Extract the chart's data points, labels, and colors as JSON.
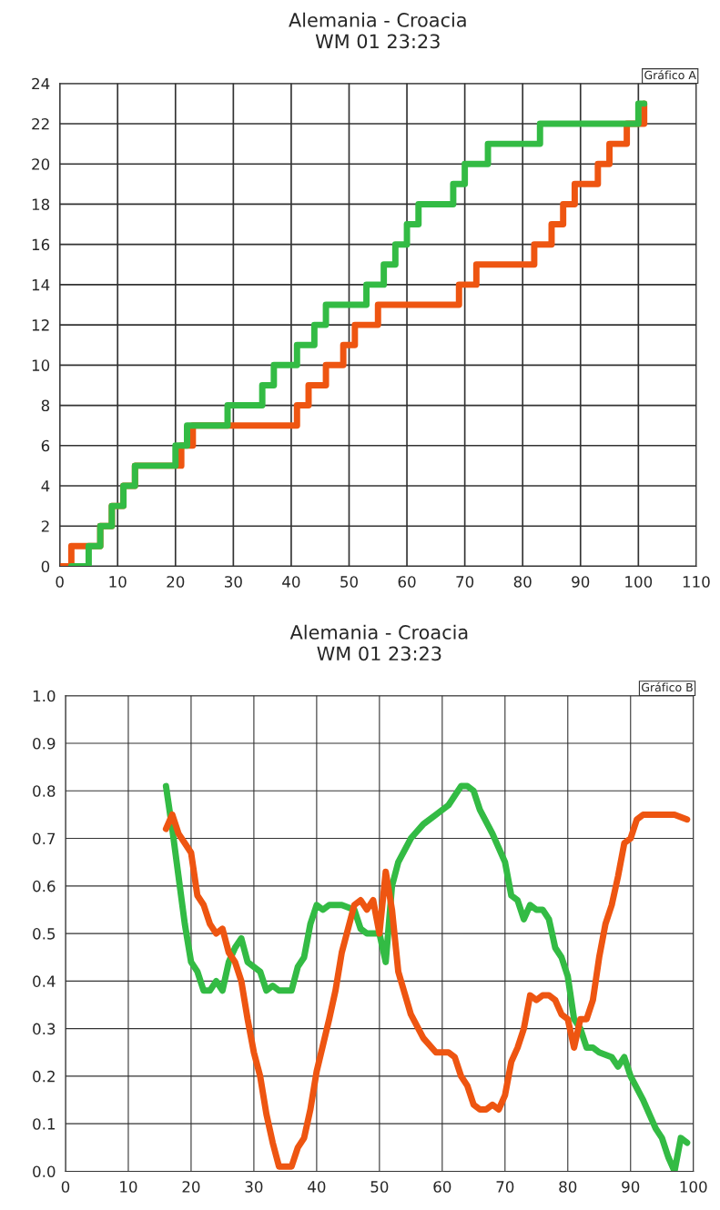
{
  "chart_data": [
    {
      "type": "step",
      "title": "Alemania - Croacia",
      "subtitle": "WM 01 23:23",
      "annotations": [
        "Gráfico A"
      ],
      "xlim": [
        0,
        110
      ],
      "xticks": [
        0,
        10,
        20,
        30,
        40,
        50,
        60,
        70,
        80,
        90,
        100,
        110
      ],
      "ylim": [
        0,
        24
      ],
      "yticks": [
        0,
        2,
        4,
        6,
        8,
        10,
        12,
        14,
        16,
        18,
        20,
        22,
        24
      ],
      "grid": true,
      "marker": "none",
      "line_style": "solid",
      "series": [
        {
          "color": "#ee5511",
          "x": [
            0,
            2,
            7,
            9,
            11,
            13,
            19,
            21,
            23,
            41,
            43,
            46,
            49,
            51,
            55,
            69,
            72,
            82,
            85,
            87,
            89,
            93,
            95,
            98,
            101
          ],
          "values": [
            0,
            1,
            2,
            3,
            4,
            5,
            5,
            6,
            7,
            8,
            9,
            10,
            11,
            12,
            13,
            14,
            15,
            16,
            17,
            18,
            19,
            20,
            21,
            22,
            23
          ]
        },
        {
          "color": "#33bb44",
          "x": [
            2,
            5,
            7,
            9,
            11,
            13,
            20,
            22,
            29,
            35,
            37,
            41,
            44,
            46,
            53,
            56,
            58,
            60,
            62,
            68,
            70,
            74,
            83,
            100,
            101
          ],
          "values": [
            0,
            1,
            2,
            3,
            4,
            5,
            6,
            7,
            8,
            9,
            10,
            11,
            12,
            13,
            14,
            15,
            16,
            17,
            18,
            19,
            20,
            21,
            22,
            23,
            23
          ]
        }
      ]
    },
    {
      "type": "line",
      "title": "Alemania - Croacia",
      "subtitle": "WM 01 23:23",
      "annotations": [
        "Gráfico B"
      ],
      "xlim": [
        0,
        100
      ],
      "xticks": [
        0,
        10,
        20,
        30,
        40,
        50,
        60,
        70,
        80,
        90,
        100
      ],
      "ylim": [
        0,
        1
      ],
      "yticks": [
        {
          "value": 0,
          "label": "0.0"
        },
        0.1,
        0.2,
        0.3,
        0.4,
        0.5,
        0.6,
        0.7,
        0.8,
        0.9,
        {
          "value": 1,
          "label": "1.0"
        }
      ],
      "grid": true,
      "marker": "none",
      "line_style": "solid",
      "series": [
        {
          "color": "#33bb44",
          "x": [
            16,
            17,
            18,
            19,
            20,
            21,
            22,
            23,
            24,
            25,
            26,
            27,
            28,
            29,
            30,
            31,
            32,
            33,
            34,
            36,
            37,
            38,
            39,
            40,
            41,
            42,
            44,
            46,
            47,
            48,
            50,
            51,
            52,
            53,
            55,
            57,
            59,
            61,
            63,
            64,
            65,
            66,
            68,
            70,
            71,
            72,
            73,
            74,
            75,
            76,
            77,
            78,
            79,
            80,
            81,
            82,
            83,
            84,
            85,
            87,
            88,
            89,
            90,
            92,
            94,
            95,
            96,
            97,
            98,
            99
          ],
          "values": [
            0.81,
            0.72,
            0.62,
            0.52,
            0.44,
            0.42,
            0.38,
            0.38,
            0.4,
            0.38,
            0.44,
            0.47,
            0.49,
            0.44,
            0.43,
            0.42,
            0.38,
            0.39,
            0.38,
            0.38,
            0.43,
            0.45,
            0.52,
            0.56,
            0.55,
            0.56,
            0.56,
            0.55,
            0.51,
            0.5,
            0.5,
            0.44,
            0.6,
            0.65,
            0.7,
            0.73,
            0.75,
            0.77,
            0.81,
            0.81,
            0.8,
            0.76,
            0.71,
            0.65,
            0.58,
            0.57,
            0.53,
            0.56,
            0.55,
            0.55,
            0.53,
            0.47,
            0.45,
            0.41,
            0.32,
            0.3,
            0.26,
            0.26,
            0.25,
            0.24,
            0.22,
            0.24,
            0.2,
            0.15,
            0.09,
            0.07,
            0.03,
            0.0,
            0.07,
            0.06
          ]
        },
        {
          "color": "#ee5511",
          "x": [
            16,
            17,
            18,
            19,
            20,
            21,
            22,
            23,
            24,
            25,
            26,
            27,
            28,
            29,
            30,
            31,
            32,
            33,
            34,
            35,
            36,
            37,
            38,
            39,
            40,
            42,
            43,
            44,
            45,
            46,
            47,
            48,
            49,
            50,
            51,
            52,
            53,
            55,
            57,
            59,
            61,
            62,
            63,
            64,
            65,
            66,
            67,
            68,
            69,
            70,
            71,
            72,
            73,
            74,
            75,
            76,
            77,
            78,
            79,
            80,
            81,
            82,
            83,
            84,
            85,
            86,
            87,
            88,
            89,
            90,
            91,
            92,
            93,
            95,
            97,
            99
          ],
          "values": [
            0.72,
            0.75,
            0.71,
            0.69,
            0.67,
            0.58,
            0.56,
            0.52,
            0.5,
            0.51,
            0.46,
            0.44,
            0.4,
            0.32,
            0.25,
            0.2,
            0.12,
            0.06,
            0.01,
            0.01,
            0.01,
            0.05,
            0.07,
            0.13,
            0.21,
            0.32,
            0.38,
            0.46,
            0.51,
            0.56,
            0.57,
            0.55,
            0.57,
            0.5,
            0.63,
            0.55,
            0.42,
            0.33,
            0.28,
            0.25,
            0.25,
            0.24,
            0.2,
            0.18,
            0.14,
            0.13,
            0.13,
            0.14,
            0.13,
            0.16,
            0.23,
            0.26,
            0.3,
            0.37,
            0.36,
            0.37,
            0.37,
            0.36,
            0.33,
            0.32,
            0.26,
            0.32,
            0.32,
            0.36,
            0.45,
            0.52,
            0.56,
            0.62,
            0.69,
            0.7,
            0.74,
            0.75,
            0.75,
            0.75,
            0.75,
            0.74
          ]
        }
      ]
    }
  ]
}
